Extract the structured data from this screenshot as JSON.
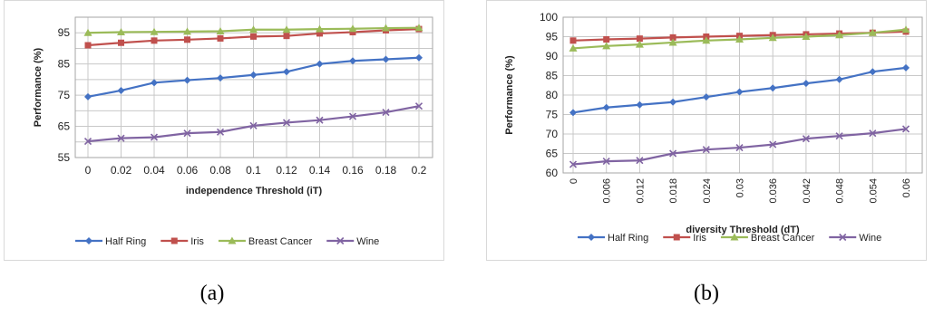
{
  "captions": [
    "(a)",
    "(b)"
  ],
  "colors": {
    "Half Ring": "#4472C4",
    "Iris": "#C0504D",
    "Breast Cancer": "#9BBB59",
    "Wine": "#8064A2",
    "grid": "#c8c8c8"
  },
  "markers": {
    "Half Ring": "diamond",
    "Iris": "square",
    "Breast Cancer": "triangle",
    "Wine": "x"
  },
  "chart_data": [
    {
      "type": "line",
      "xlabel": "independence Threshold (iT)",
      "ylabel": "Performance (%)",
      "ylim": [
        55,
        100
      ],
      "yticks": [
        55,
        65,
        75,
        85,
        95
      ],
      "grid": true,
      "legend_position": "bottom",
      "x": [
        0,
        0.02,
        0.04,
        0.06,
        0.08,
        0.1,
        0.12,
        0.14,
        0.16,
        0.18,
        0.2
      ],
      "xtick_labels": [
        "0",
        "0.02",
        "0.04",
        "0.06",
        "0.08",
        "0.1",
        "0.12",
        "0.14",
        "0.16",
        "0.18",
        "0.2"
      ],
      "series": [
        {
          "name": "Half Ring",
          "values": [
            74.5,
            76.5,
            79,
            79.8,
            80.5,
            81.5,
            82.5,
            85,
            86,
            86.5,
            87
          ]
        },
        {
          "name": "Iris",
          "values": [
            91,
            91.8,
            92.5,
            92.8,
            93.2,
            93.8,
            94,
            94.8,
            95.2,
            95.8,
            96.2
          ]
        },
        {
          "name": "Breast Cancer",
          "values": [
            95,
            95.2,
            95.3,
            95.4,
            95.5,
            96,
            96,
            96.2,
            96.3,
            96.5,
            96.6
          ]
        },
        {
          "name": "Wine",
          "values": [
            60.2,
            61.2,
            61.5,
            62.8,
            63.2,
            65.2,
            66.2,
            67,
            68.2,
            69.5,
            71.5
          ]
        }
      ]
    },
    {
      "type": "line",
      "xlabel": "diversity Threshold (dT)",
      "ylabel": "Performance (%)",
      "ylim": [
        60,
        100
      ],
      "yticks": [
        60,
        65,
        70,
        75,
        80,
        85,
        90,
        95,
        100
      ],
      "grid": true,
      "legend_position": "bottom",
      "x": [
        0,
        0.006,
        0.012,
        0.018,
        0.024,
        0.03,
        0.036,
        0.042,
        0.048,
        0.054,
        0.06
      ],
      "xtick_labels": [
        "0",
        "0.006",
        "0.012",
        "0.018",
        "0.024",
        "0.03",
        "0.036",
        "0.042",
        "0.048",
        "0.054",
        "0.06"
      ],
      "series": [
        {
          "name": "Half Ring",
          "values": [
            75.5,
            76.8,
            77.5,
            78.2,
            79.5,
            80.8,
            81.8,
            83,
            84,
            86,
            87
          ]
        },
        {
          "name": "Iris",
          "values": [
            94,
            94.3,
            94.5,
            94.8,
            95,
            95.2,
            95.4,
            95.6,
            95.8,
            96,
            96.3
          ]
        },
        {
          "name": "Breast Cancer",
          "values": [
            92,
            92.6,
            93,
            93.5,
            94,
            94.3,
            94.7,
            95,
            95.4,
            96,
            96.8
          ]
        },
        {
          "name": "Wine",
          "values": [
            62.2,
            63,
            63.2,
            65,
            66,
            66.5,
            67.3,
            68.8,
            69.5,
            70.2,
            71.3
          ]
        }
      ]
    }
  ]
}
